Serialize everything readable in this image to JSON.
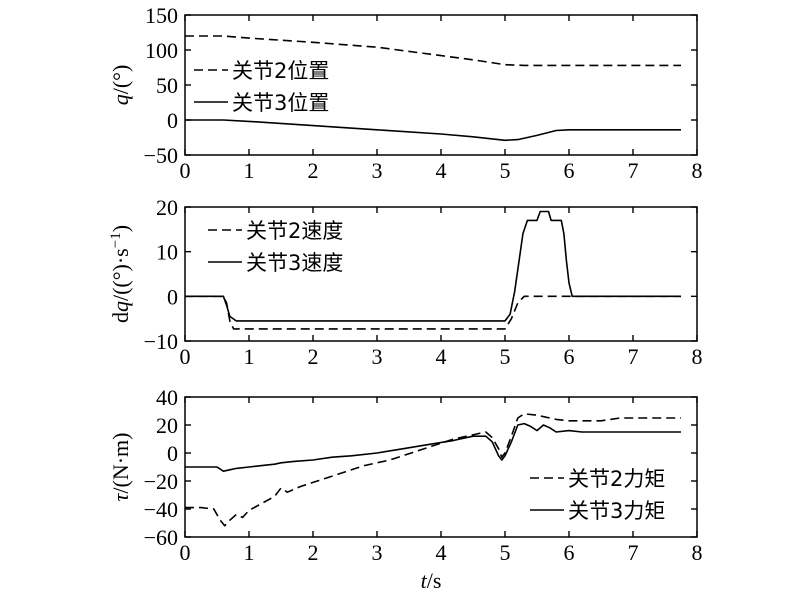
{
  "chart_data": [
    {
      "type": "line",
      "ylabel": "q/(°)",
      "ylabel_parts": {
        "var": "q",
        "rest": "/(°)"
      },
      "xlim": [
        0,
        8
      ],
      "ylim": [
        -50,
        150
      ],
      "x_ticks": [
        "0",
        "1",
        "2",
        "3",
        "4",
        "5",
        "6",
        "7",
        "8"
      ],
      "y_ticks": [
        "150",
        "100",
        "50",
        "0",
        "−50"
      ],
      "y_tick_values": [
        150,
        100,
        50,
        0,
        -50
      ],
      "legend_position": "upper-left",
      "series": [
        {
          "name": "关节2位置",
          "style": "dashed",
          "points": [
            [
              0,
              120
            ],
            [
              0.6,
              120
            ],
            [
              1,
              117
            ],
            [
              2,
              111
            ],
            [
              3,
              104
            ],
            [
              4,
              92
            ],
            [
              4.5,
              86
            ],
            [
              5,
              79
            ],
            [
              5.3,
              78
            ],
            [
              7.75,
              78
            ]
          ]
        },
        {
          "name": "关节3位置",
          "style": "solid",
          "points": [
            [
              0,
              0
            ],
            [
              0.6,
              0
            ],
            [
              1,
              -2
            ],
            [
              2,
              -8
            ],
            [
              3,
              -14
            ],
            [
              4,
              -20
            ],
            [
              4.5,
              -24
            ],
            [
              5,
              -29
            ],
            [
              5.2,
              -28
            ],
            [
              5.5,
              -22
            ],
            [
              5.8,
              -15
            ],
            [
              6,
              -14
            ],
            [
              7.75,
              -14
            ]
          ]
        }
      ]
    },
    {
      "type": "line",
      "ylabel": "dq/((°)·s⁻¹)",
      "ylabel_parts": {
        "pre": "d",
        "var": "q",
        "rest": "/((°)·s",
        "sup": "−1",
        "end": ")"
      },
      "xlim": [
        0,
        8
      ],
      "ylim": [
        -10,
        20
      ],
      "x_ticks": [
        "0",
        "1",
        "2",
        "3",
        "4",
        "5",
        "6",
        "7",
        "8"
      ],
      "y_ticks": [
        "20",
        "10",
        "0",
        "−10"
      ],
      "y_tick_values": [
        20,
        10,
        0,
        -10
      ],
      "legend_position": "upper-left",
      "series": [
        {
          "name": "关节2速度",
          "style": "dashed",
          "points": [
            [
              0,
              0
            ],
            [
              0.6,
              0
            ],
            [
              0.65,
              -1.5
            ],
            [
              0.7,
              -5.5
            ],
            [
              0.76,
              -7.3
            ],
            [
              5.0,
              -7.3
            ],
            [
              5.1,
              -5
            ],
            [
              5.2,
              -1.5
            ],
            [
              5.3,
              0
            ],
            [
              7.75,
              0
            ]
          ]
        },
        {
          "name": "关节3速度",
          "style": "solid",
          "points": [
            [
              0,
              0
            ],
            [
              0.6,
              0
            ],
            [
              0.65,
              -2
            ],
            [
              0.7,
              -4.5
            ],
            [
              0.8,
              -5.5
            ],
            [
              5.0,
              -5.5
            ],
            [
              5.08,
              -4
            ],
            [
              5.15,
              1
            ],
            [
              5.22,
              8
            ],
            [
              5.28,
              14
            ],
            [
              5.35,
              17
            ],
            [
              5.5,
              17
            ],
            [
              5.55,
              19
            ],
            [
              5.68,
              19
            ],
            [
              5.72,
              17
            ],
            [
              5.88,
              17
            ],
            [
              5.92,
              14
            ],
            [
              5.96,
              8
            ],
            [
              6.0,
              3
            ],
            [
              6.05,
              0
            ],
            [
              7.75,
              0
            ]
          ]
        }
      ]
    },
    {
      "type": "line",
      "xlabel": "t/s",
      "xlabel_parts": {
        "var": "t",
        "rest": "/s"
      },
      "ylabel": "τ/(N·m)",
      "ylabel_parts": {
        "var": "τ",
        "rest": "/(N·m)"
      },
      "xlim": [
        0,
        8
      ],
      "ylim": [
        -60,
        40
      ],
      "x_ticks": [
        "0",
        "1",
        "2",
        "3",
        "4",
        "5",
        "6",
        "7",
        "8"
      ],
      "y_ticks": [
        "40",
        "20",
        "0",
        "−20",
        "−40",
        "−60"
      ],
      "y_tick_values": [
        40,
        20,
        0,
        -20,
        -40,
        -60
      ],
      "legend_position": "lower-right",
      "series": [
        {
          "name": "关节2力矩",
          "style": "dashed",
          "points": [
            [
              0,
              -39
            ],
            [
              0.25,
              -39
            ],
            [
              0.45,
              -40
            ],
            [
              0.55,
              -48
            ],
            [
              0.62,
              -52
            ],
            [
              0.7,
              -48
            ],
            [
              0.8,
              -44
            ],
            [
              0.9,
              -46
            ],
            [
              1.0,
              -41
            ],
            [
              1.2,
              -36
            ],
            [
              1.4,
              -31
            ],
            [
              1.5,
              -25
            ],
            [
              1.6,
              -28
            ],
            [
              1.8,
              -24
            ],
            [
              2.0,
              -21
            ],
            [
              2.2,
              -18
            ],
            [
              2.4,
              -15
            ],
            [
              2.6,
              -12
            ],
            [
              2.8,
              -9
            ],
            [
              3.0,
              -7
            ],
            [
              3.2,
              -5
            ],
            [
              3.4,
              -2
            ],
            [
              3.6,
              1
            ],
            [
              3.8,
              4
            ],
            [
              4.0,
              7
            ],
            [
              4.2,
              10
            ],
            [
              4.4,
              12
            ],
            [
              4.6,
              14
            ],
            [
              4.7,
              15
            ],
            [
              4.8,
              11
            ],
            [
              4.9,
              3
            ],
            [
              4.95,
              -3
            ],
            [
              5.0,
              0
            ],
            [
              5.1,
              12
            ],
            [
              5.2,
              25
            ],
            [
              5.3,
              28
            ],
            [
              5.5,
              27
            ],
            [
              5.8,
              24
            ],
            [
              6.0,
              23
            ],
            [
              6.5,
              23
            ],
            [
              6.8,
              25
            ],
            [
              7.75,
              25
            ]
          ]
        },
        {
          "name": "关节3力矩",
          "style": "solid",
          "points": [
            [
              0,
              -10
            ],
            [
              0.5,
              -10
            ],
            [
              0.6,
              -13
            ],
            [
              0.7,
              -12
            ],
            [
              0.8,
              -11
            ],
            [
              1.0,
              -10
            ],
            [
              1.2,
              -9
            ],
            [
              1.4,
              -8
            ],
            [
              1.5,
              -7
            ],
            [
              1.7,
              -6
            ],
            [
              2.0,
              -5
            ],
            [
              2.3,
              -3
            ],
            [
              2.6,
              -2
            ],
            [
              3.0,
              0
            ],
            [
              3.4,
              3
            ],
            [
              3.8,
              6
            ],
            [
              4.2,
              9
            ],
            [
              4.5,
              12
            ],
            [
              4.7,
              12
            ],
            [
              4.8,
              8
            ],
            [
              4.9,
              -2
            ],
            [
              4.95,
              -5
            ],
            [
              5.0,
              -2
            ],
            [
              5.1,
              8
            ],
            [
              5.2,
              20
            ],
            [
              5.3,
              21
            ],
            [
              5.4,
              19
            ],
            [
              5.5,
              16
            ],
            [
              5.6,
              20
            ],
            [
              5.7,
              18
            ],
            [
              5.8,
              15
            ],
            [
              6.0,
              16
            ],
            [
              6.2,
              15
            ],
            [
              6.5,
              15
            ],
            [
              7.0,
              15
            ],
            [
              7.75,
              15
            ]
          ]
        }
      ]
    }
  ]
}
